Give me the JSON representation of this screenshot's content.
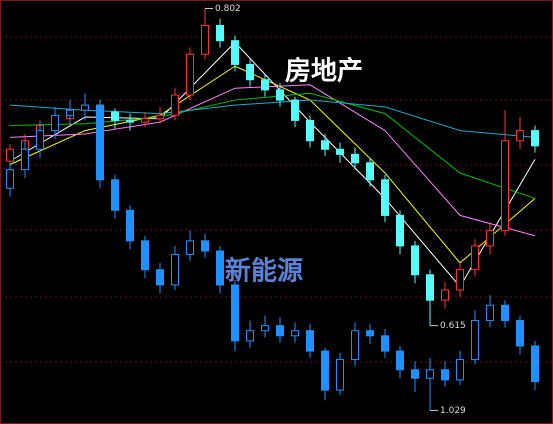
{
  "chart_data": {
    "type": "candlestick",
    "ylim": [
      0.557,
      0.807
    ],
    "y2lim": [
      1.021,
      1.271
    ],
    "series": [
      {
        "name": "房地产",
        "color_up": "#ff3232",
        "color_down": "#54fcfc",
        "open": [
          0.712,
          0.719,
          0.724,
          0.733,
          0.737,
          0.742,
          0.745,
          0.741,
          0.736,
          0.735,
          0.737,
          0.739,
          0.751,
          0.775,
          0.792,
          0.783,
          0.769,
          0.76,
          0.754,
          0.748,
          0.736,
          0.724,
          0.719,
          0.716,
          0.711,
          0.701,
          0.68,
          0.662,
          0.645,
          0.63,
          0.636,
          0.648,
          0.662,
          0.671,
          0.724,
          0.73
        ],
        "high": [
          0.722,
          0.728,
          0.736,
          0.741,
          0.747,
          0.75,
          0.748,
          0.743,
          0.74,
          0.741,
          0.744,
          0.755,
          0.779,
          0.802,
          0.796,
          0.786,
          0.772,
          0.763,
          0.758,
          0.75,
          0.739,
          0.728,
          0.723,
          0.72,
          0.714,
          0.704,
          0.683,
          0.665,
          0.648,
          0.641,
          0.652,
          0.666,
          0.675,
          0.742,
          0.738,
          0.733
        ],
        "low": [
          0.708,
          0.715,
          0.72,
          0.729,
          0.733,
          0.738,
          0.737,
          0.731,
          0.73,
          0.732,
          0.734,
          0.736,
          0.748,
          0.772,
          0.779,
          0.765,
          0.756,
          0.75,
          0.744,
          0.732,
          0.72,
          0.715,
          0.711,
          0.707,
          0.697,
          0.676,
          0.657,
          0.64,
          0.615,
          0.625,
          0.632,
          0.644,
          0.657,
          0.668,
          0.719,
          0.717
        ],
        "close": [
          0.719,
          0.724,
          0.733,
          0.737,
          0.742,
          0.745,
          0.741,
          0.736,
          0.735,
          0.737,
          0.739,
          0.751,
          0.775,
          0.792,
          0.783,
          0.769,
          0.76,
          0.754,
          0.748,
          0.736,
          0.724,
          0.719,
          0.716,
          0.711,
          0.701,
          0.68,
          0.662,
          0.645,
          0.63,
          0.636,
          0.648,
          0.662,
          0.671,
          0.724,
          0.73,
          0.721
        ]
      },
      {
        "name": "新能源",
        "axis": "y2",
        "color_up": "#1e90ff",
        "color_down": "#1e90ff",
        "open": [
          1.16,
          1.171,
          1.183,
          1.194,
          1.203,
          1.206,
          1.209,
          1.165,
          1.147,
          1.129,
          1.112,
          1.103,
          1.121,
          1.129,
          1.123,
          1.103,
          1.07,
          1.076,
          1.079,
          1.073,
          1.076,
          1.064,
          1.041,
          1.059,
          1.076,
          1.073,
          1.064,
          1.053,
          1.048,
          1.053,
          1.047,
          1.059,
          1.082,
          1.091,
          1.082,
          1.067
        ],
        "high": [
          1.176,
          1.188,
          1.199,
          1.208,
          1.212,
          1.216,
          1.211,
          1.168,
          1.15,
          1.132,
          1.116,
          1.126,
          1.135,
          1.133,
          1.126,
          1.106,
          1.082,
          1.085,
          1.084,
          1.081,
          1.08,
          1.066,
          1.063,
          1.081,
          1.08,
          1.077,
          1.067,
          1.058,
          1.06,
          1.058,
          1.064,
          1.088,
          1.097,
          1.094,
          1.085,
          1.07
        ],
        "low": [
          1.155,
          1.166,
          1.178,
          1.189,
          1.198,
          1.2,
          1.16,
          1.142,
          1.124,
          1.107,
          1.098,
          1.1,
          1.117,
          1.119,
          1.098,
          1.064,
          1.066,
          1.072,
          1.069,
          1.069,
          1.06,
          1.035,
          1.038,
          1.055,
          1.068,
          1.06,
          1.048,
          1.04,
          1.029,
          1.043,
          1.044,
          1.056,
          1.078,
          1.078,
          1.062,
          1.041
        ],
        "close": [
          1.171,
          1.183,
          1.194,
          1.203,
          1.206,
          1.209,
          1.165,
          1.147,
          1.129,
          1.112,
          1.103,
          1.121,
          1.129,
          1.123,
          1.103,
          1.07,
          1.076,
          1.079,
          1.073,
          1.076,
          1.064,
          1.041,
          1.059,
          1.076,
          1.073,
          1.064,
          1.053,
          1.048,
          1.053,
          1.047,
          1.059,
          1.082,
          1.091,
          1.082,
          1.067,
          1.046
        ]
      }
    ],
    "moving_averages": [
      {
        "color": "#ffffff",
        "x": [
          0,
          5,
          10,
          15,
          20,
          25,
          30,
          35
        ],
        "values": [
          0.712,
          0.738,
          0.737,
          0.782,
          0.735,
          0.69,
          0.638,
          0.713
        ]
      },
      {
        "color": "#ffff00",
        "x": [
          0,
          5,
          10,
          15,
          20,
          25,
          30,
          35
        ],
        "values": [
          0.71,
          0.73,
          0.739,
          0.768,
          0.748,
          0.705,
          0.652,
          0.69
        ]
      },
      {
        "color": "#ff80ff",
        "x": [
          0,
          5,
          10,
          15,
          20,
          25,
          30,
          35
        ],
        "values": [
          0.726,
          0.728,
          0.735,
          0.755,
          0.757,
          0.73,
          0.68,
          0.668
        ]
      },
      {
        "color": "#00c000",
        "x": [
          0,
          5,
          10,
          15,
          20,
          25,
          30,
          35
        ],
        "values": [
          0.733,
          0.734,
          0.738,
          0.748,
          0.752,
          0.74,
          0.705,
          0.69
        ]
      },
      {
        "color": "#20a8c8",
        "x": [
          0,
          5,
          10,
          15,
          20,
          25,
          30,
          35
        ],
        "values": [
          0.745,
          0.742,
          0.74,
          0.745,
          0.748,
          0.744,
          0.73,
          0.726
        ]
      }
    ],
    "annotations": [
      "0.802",
      "0.615",
      "1.029"
    ]
  }
}
